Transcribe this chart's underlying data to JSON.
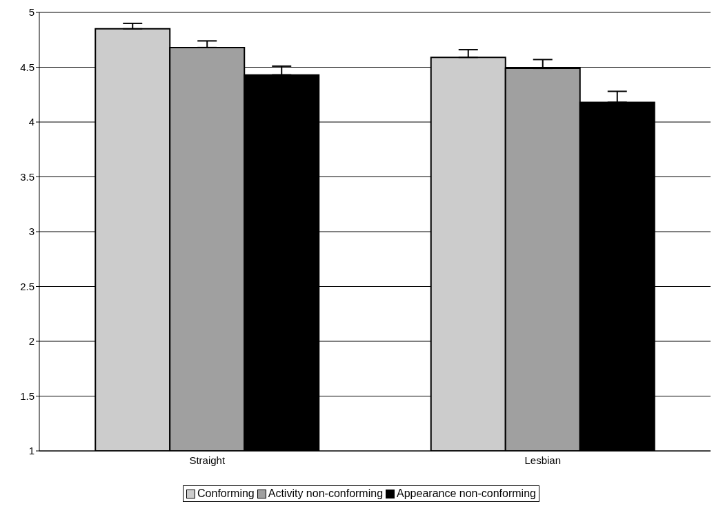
{
  "chart_data": {
    "type": "bar",
    "categories": [
      "Straight",
      "Lesbian"
    ],
    "series": [
      {
        "name": "Conforming",
        "color": "#cccccc",
        "values": [
          4.85,
          4.59
        ],
        "errors": [
          [
            4.85,
            4.9
          ],
          [
            4.59,
            4.66
          ]
        ]
      },
      {
        "name": "Activity non-conforming",
        "color": "#a0a0a0",
        "values": [
          4.68,
          4.49
        ],
        "errors": [
          [
            4.68,
            4.74
          ],
          [
            4.49,
            4.57
          ]
        ]
      },
      {
        "name": "Appearance non-conforming",
        "color": "#000000",
        "values": [
          4.43,
          4.18
        ],
        "errors": [
          [
            4.43,
            4.51
          ],
          [
            4.18,
            4.28
          ]
        ]
      }
    ],
    "ylim": [
      1,
      5
    ],
    "yticks": [
      1,
      1.5,
      2,
      2.5,
      3,
      3.5,
      4,
      4.5,
      5
    ],
    "grid": "y",
    "legend": "bottom"
  }
}
